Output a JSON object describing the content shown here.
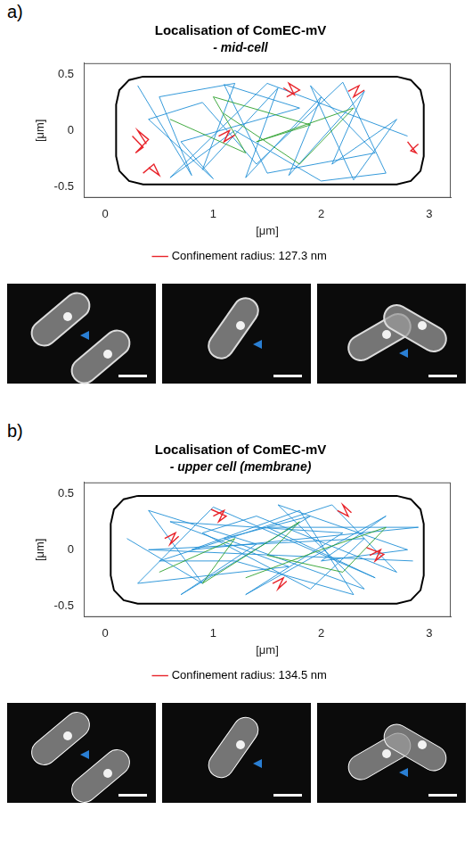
{
  "chart_data": [
    {
      "panel": "a)",
      "type": "line",
      "title": "Localisation of ComEC-mV",
      "subtitle": "- mid-cell",
      "x_label": "[μm]",
      "y_label": "[μm]",
      "xlim": [
        -0.2,
        3.2
      ],
      "xticks": [
        0,
        1,
        2,
        3
      ],
      "ylim": [
        -0.6,
        0.6
      ],
      "yticks": [
        -0.5,
        0,
        0.5
      ],
      "grid": false,
      "legend": "bottom",
      "series": [
        {
          "name": "Confinement radius: 127.3 nm",
          "color": "#e8232a",
          "x": [
            0.25,
            0.35,
            0.28,
            0.4,
            0.3,
            0.38,
            null,
            1.65,
            1.75,
            1.7,
            1.8,
            1.68,
            null,
            2.25,
            2.35,
            2.3,
            2.4,
            null,
            0.35,
            0.45,
            0.5,
            0.4,
            null,
            2.8,
            2.88,
            2.83,
            2.9,
            null,
            1.05,
            1.15,
            1.1,
            1.2
          ],
          "values": [
            -0.05,
            -0.15,
            -0.2,
            -0.08,
            0.0,
            -0.12,
            null,
            0.38,
            0.32,
            0.42,
            0.36,
            0.3,
            null,
            0.35,
            0.4,
            0.3,
            0.36,
            null,
            -0.38,
            -0.3,
            -0.4,
            -0.33,
            null,
            -0.1,
            -0.2,
            -0.18,
            -0.12,
            null,
            -0.05,
            0.0,
            -0.1,
            -0.04
          ]
        },
        {
          "color": "#2ca02c",
          "x": [
            0.6,
            1.3,
            1.0,
            1.9,
            1.4,
            2.3,
            1.8,
            1.1
          ],
          "values": [
            0.1,
            -0.2,
            0.3,
            0.05,
            -0.1,
            0.2,
            -0.3,
            0.15
          ]
        },
        {
          "color": "#1f8fd6",
          "x": [
            0.3,
            0.8,
            0.5,
            1.2,
            0.9,
            1.6,
            1.3,
            2.0,
            1.7,
            2.4,
            2.1,
            2.7,
            2.3,
            1.9,
            2.5,
            1.5,
            1.1,
            1.8,
            0.7,
            1.0,
            0.4,
            0.9,
            1.4,
            2.2,
            2.6,
            2.0,
            1.2,
            0.6,
            1.5,
            2.8
          ],
          "values": [
            0.4,
            -0.4,
            0.3,
            0.42,
            -0.35,
            0.38,
            -0.42,
            0.3,
            -0.4,
            0.35,
            -0.3,
            0.1,
            -0.44,
            0.4,
            -0.2,
            -0.38,
            0.41,
            0.2,
            -0.1,
            -0.43,
            0.1,
            0.25,
            -0.3,
            0.43,
            -0.38,
            -0.45,
            0.0,
            -0.42,
            0.42,
            -0.05
          ]
        },
        {
          "color": "#000000",
          "x": [
            0.35,
            2.7,
            2.83,
            2.92,
            2.95,
            2.95,
            2.92,
            2.83,
            2.7,
            0.35,
            0.22,
            0.13,
            0.1,
            0.1,
            0.13,
            0.22,
            0.35
          ],
          "values": [
            0.48,
            0.48,
            0.45,
            0.36,
            0.23,
            -0.23,
            -0.36,
            -0.45,
            -0.48,
            -0.48,
            -0.45,
            -0.36,
            -0.23,
            0.23,
            0.36,
            0.45,
            0.48
          ]
        }
      ]
    },
    {
      "panel": "b)",
      "type": "line",
      "title": "Localisation of ComEC-mV",
      "subtitle": "- upper cell (membrane)",
      "x_label": "[μm]",
      "y_label": "[μm]",
      "xlim": [
        -0.2,
        3.2
      ],
      "xticks": [
        0,
        1,
        2,
        3
      ],
      "ylim": [
        -0.6,
        0.6
      ],
      "yticks": [
        -0.5,
        0,
        0.5
      ],
      "grid": false,
      "legend": "bottom",
      "series": [
        {
          "name": "Confinement radius: 134.5 nm",
          "color": "#e8232a",
          "x": [
            1.0,
            1.1,
            1.05,
            1.12,
            0.98,
            null,
            2.45,
            2.55,
            2.5,
            2.58,
            2.42,
            null,
            0.55,
            0.65,
            0.6,
            0.68,
            null,
            1.55,
            1.65,
            1.6,
            1.68,
            null,
            2.15,
            2.25,
            2.2,
            2.28
          ],
          "values": [
            0.3,
            0.35,
            0.25,
            0.3,
            0.36,
            null,
            -0.05,
            0.0,
            -0.1,
            -0.04,
            0.02,
            null,
            0.1,
            0.15,
            0.05,
            0.12,
            null,
            -0.3,
            -0.25,
            -0.35,
            -0.28,
            null,
            0.35,
            0.3,
            0.4,
            0.33
          ]
        },
        {
          "color": "#2ca02c",
          "x": [
            0.5,
            1.2,
            0.9,
            1.8,
            1.5,
            2.2,
            2.6,
            2.0,
            1.3
          ],
          "values": [
            -0.2,
            0.1,
            -0.3,
            0.25,
            -0.05,
            -0.2,
            0.2,
            0.0,
            -0.25
          ]
        },
        {
          "color": "#1f8fd6",
          "x": [
            0.2,
            0.9,
            0.4,
            1.4,
            0.7,
            1.9,
            1.1,
            2.4,
            1.6,
            2.8,
            2.0,
            2.6,
            1.3,
            2.2,
            0.6,
            1.7,
            0.3,
            1.0,
            2.5,
            1.5,
            2.9,
            0.8,
            1.8,
            2.3,
            1.2,
            0.5,
            2.1,
            2.7,
            1.4,
            0.9,
            1.9,
            2.4,
            0.4,
            1.6,
            2.85
          ],
          "values": [
            0.1,
            -0.3,
            0.35,
            0.05,
            -0.4,
            0.3,
            0.1,
            -0.35,
            0.4,
            0.0,
            -0.1,
            0.3,
            -0.4,
            0.15,
            0.25,
            -0.15,
            -0.3,
            0.38,
            -0.25,
            0.2,
            0.2,
            0.0,
            0.35,
            -0.4,
            -0.1,
            -0.1,
            0.4,
            -0.2,
            0.3,
            0.15,
            -0.35,
            0.1,
            0.0,
            -0.05,
            -0.1
          ]
        },
        {
          "color": "#000000",
          "x": [
            0.3,
            2.7,
            2.83,
            2.92,
            2.95,
            2.95,
            2.92,
            2.83,
            2.7,
            0.3,
            0.17,
            0.08,
            0.05,
            0.05,
            0.08,
            0.17,
            0.3
          ],
          "values": [
            0.48,
            0.48,
            0.45,
            0.36,
            0.23,
            -0.23,
            -0.36,
            -0.45,
            -0.48,
            -0.48,
            -0.45,
            -0.36,
            -0.23,
            0.23,
            0.36,
            0.45,
            0.48
          ]
        }
      ]
    }
  ]
}
